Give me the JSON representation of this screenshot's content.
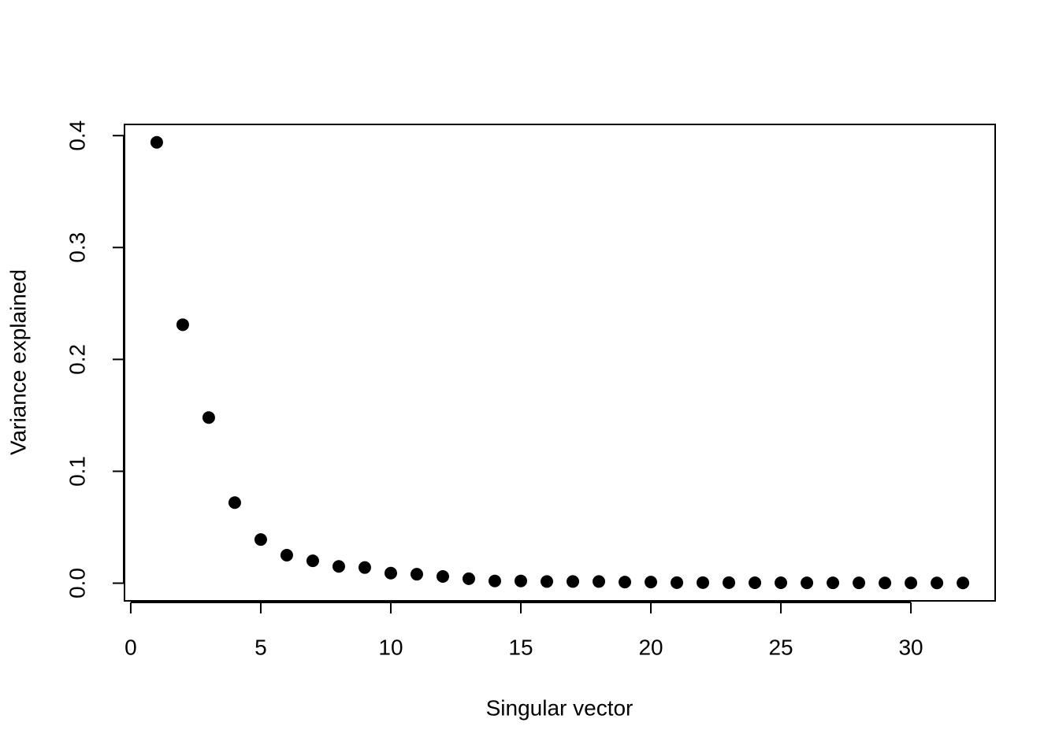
{
  "chart_data": {
    "type": "scatter",
    "x_label": "Singular vector",
    "y_label": "Variance explained",
    "x": [
      1,
      2,
      3,
      4,
      5,
      6,
      7,
      8,
      9,
      10,
      11,
      12,
      13,
      14,
      15,
      16,
      17,
      18,
      19,
      20,
      21,
      22,
      23,
      24,
      25,
      26,
      27,
      28,
      29,
      30,
      31,
      32
    ],
    "values": [
      0.394,
      0.231,
      0.148,
      0.072,
      0.039,
      0.025,
      0.02,
      0.015,
      0.014,
      0.009,
      0.008,
      0.006,
      0.004,
      0.002,
      0.002,
      0.0015,
      0.0015,
      0.0015,
      0.001,
      0.001,
      0.0005,
      0.0005,
      0.0005,
      0.0004,
      0.0004,
      0.0003,
      0.0003,
      0.0003,
      0.0002,
      0.0002,
      0.0002,
      0.0002
    ],
    "color": "#000000",
    "xlim": [
      -0.24,
      33.24
    ],
    "ylim": [
      -0.0158,
      0.41
    ],
    "xticks": [
      0,
      5,
      10,
      15,
      20,
      25,
      30
    ],
    "yticks": [
      {
        "value": 0,
        "label": "0.0"
      },
      0.1,
      0.2,
      0.3,
      0.4
    ]
  }
}
